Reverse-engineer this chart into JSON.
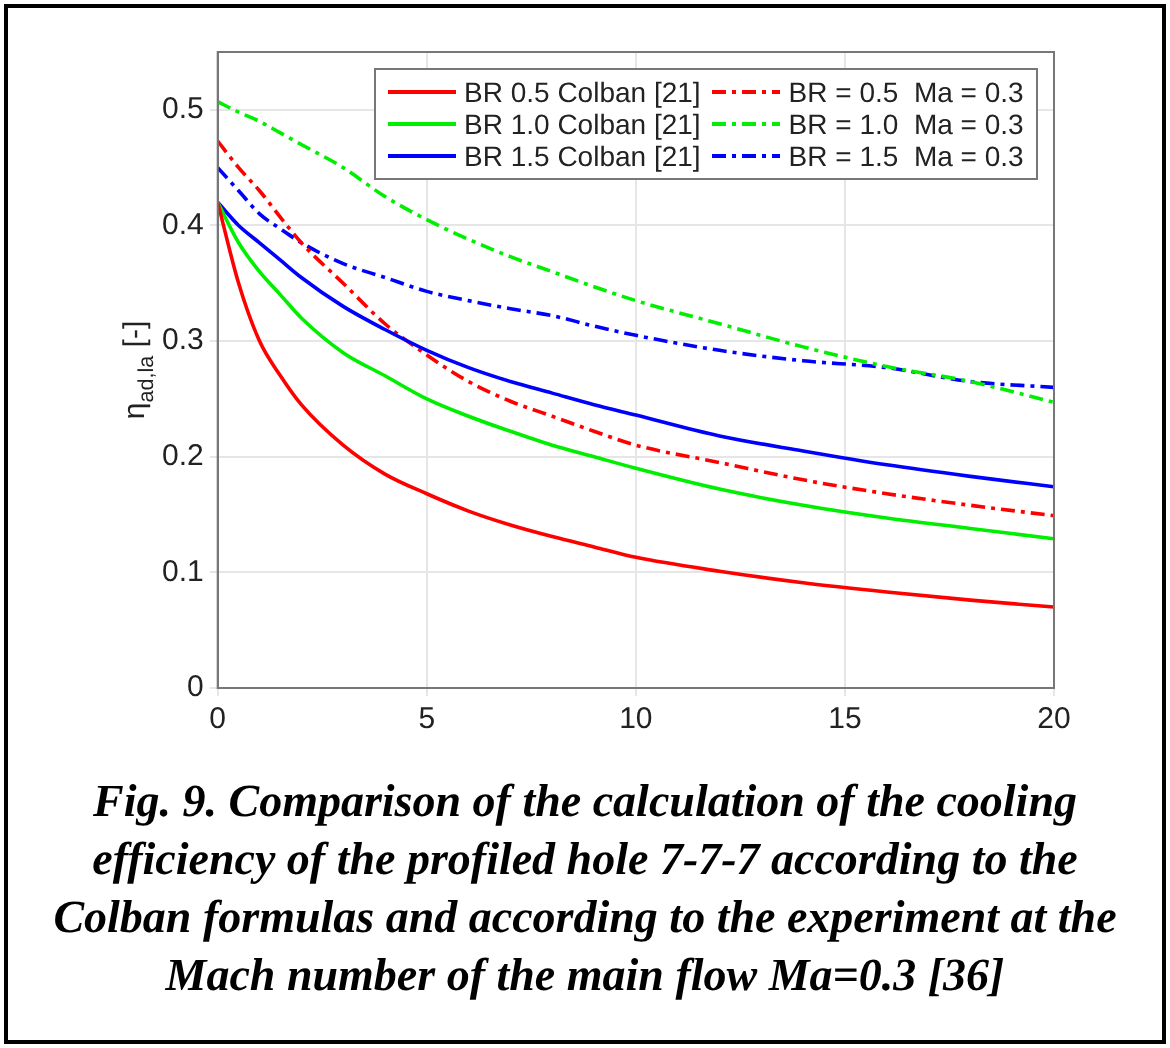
{
  "chart_data": {
    "type": "line",
    "ylabel": "η$_{ad,la}$ [-]",
    "annotations": [
      "Fig. 9. Comparison of the calculation of the cooling efficiency of the profiled hole 7-7-7 according to the Colban formulas and according to the experiment at the Mach number of the main flow Ma=0.3 [36]"
    ],
    "x": [
      0,
      0.5,
      1,
      1.5,
      2,
      3,
      4,
      5,
      6,
      7,
      8,
      9,
      10,
      12,
      14,
      16,
      18,
      20
    ],
    "xlim": [
      0,
      20
    ],
    "xticks": [
      0,
      5,
      10,
      15,
      20
    ],
    "ylim": [
      0,
      0.55
    ],
    "yticks": [
      0,
      0.1,
      0.2,
      0.3,
      0.4,
      0.5
    ],
    "grid": true,
    "legend": "top right",
    "marker": "none",
    "series": [
      {
        "name": "BR 0.5 Colban [21]",
        "color": "#ff0000",
        "line_style": "solid",
        "values": [
          0.42,
          0.35,
          0.3,
          0.27,
          0.245,
          0.21,
          0.185,
          0.168,
          0.153,
          0.141,
          0.131,
          0.122,
          0.113,
          0.101,
          0.091,
          0.083,
          0.076,
          0.07
        ]
      },
      {
        "name": "BR 1.0 Colban [21]",
        "color": "#00ee00",
        "line_style": "solid",
        "values": [
          0.42,
          0.385,
          0.36,
          0.34,
          0.32,
          0.29,
          0.27,
          0.25,
          0.235,
          0.222,
          0.21,
          0.2,
          0.19,
          0.172,
          0.158,
          0.147,
          0.138,
          0.129
        ]
      },
      {
        "name": "BR 1.5 Colban [21]",
        "color": "#0000ff",
        "line_style": "solid",
        "values": [
          0.42,
          0.4,
          0.385,
          0.37,
          0.355,
          0.33,
          0.31,
          0.292,
          0.277,
          0.265,
          0.255,
          0.245,
          0.236,
          0.218,
          0.205,
          0.193,
          0.183,
          0.174
        ]
      },
      {
        "name": "BR = 0.5  Ma = 0.3",
        "color": "#ff0000",
        "line_style": "dashed",
        "values": [
          0.473,
          0.45,
          0.43,
          0.407,
          0.385,
          0.35,
          0.315,
          0.288,
          0.265,
          0.248,
          0.235,
          0.222,
          0.21,
          0.195,
          0.18,
          0.168,
          0.158,
          0.149
        ]
      },
      {
        "name": "BR = 1.0  Ma = 0.3",
        "color": "#00ee00",
        "line_style": "dashed",
        "values": [
          0.507,
          0.498,
          0.49,
          0.48,
          0.47,
          0.45,
          0.425,
          0.405,
          0.388,
          0.373,
          0.36,
          0.347,
          0.335,
          0.315,
          0.295,
          0.278,
          0.265,
          0.247
        ]
      },
      {
        "name": "BR = 1.5  Ma = 0.3",
        "color": "#0000ff",
        "line_style": "dashed",
        "values": [
          0.45,
          0.43,
          0.41,
          0.397,
          0.385,
          0.367,
          0.355,
          0.343,
          0.335,
          0.328,
          0.322,
          0.313,
          0.305,
          0.292,
          0.283,
          0.277,
          0.265,
          0.26
        ]
      }
    ]
  }
}
